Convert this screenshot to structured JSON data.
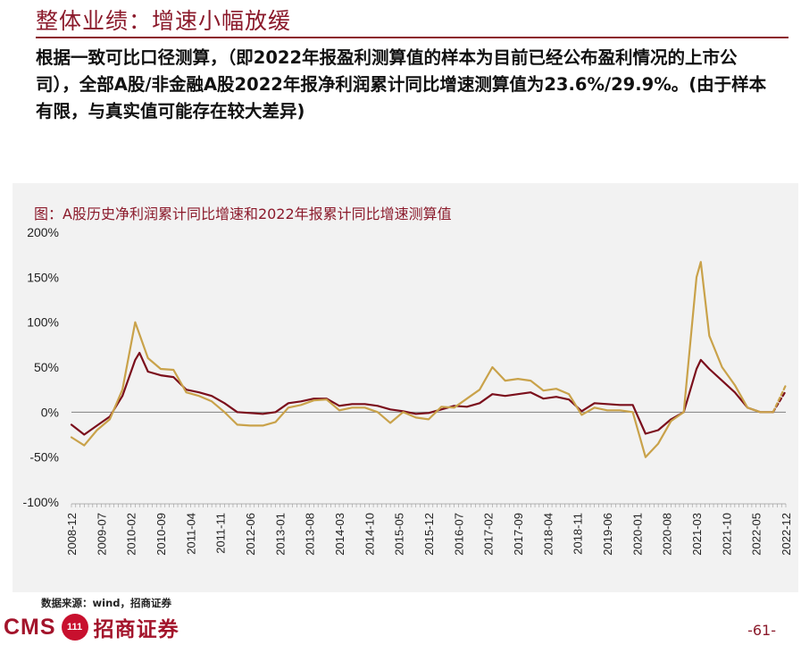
{
  "header": {
    "title": "整体业绩：增速小幅放缓",
    "intro": "根据一致可比口径测算，（即2022年报盈利测算值的样本为目前已经公布盈利情况的上市公司），全部A股/非金融A股2022年报净利润累计同比增速测算值为23.6%/29.9%。(由于样本有限，与真实值可能存在较大差异)"
  },
  "footer": {
    "source": "数据来源：wind，招商证券",
    "logo_latin": "CMS",
    "logo_cn": "招商证券",
    "page": "-61-"
  },
  "colors": {
    "dark_red": "#7b0f1c",
    "gold": "#c9a24a",
    "title_red": "#8b1a2b"
  },
  "chart_data": {
    "type": "line",
    "title": "图：A股历史净利润累计同比增速和2022年报累计同比增速测算值",
    "ylim": [
      -100,
      200
    ],
    "yticks": [
      -100,
      -50,
      0,
      50,
      100,
      150,
      200
    ],
    "ytick_labels": [
      "-100%",
      "-50%",
      "0%",
      "50%",
      "100%",
      "150%",
      "200%"
    ],
    "x_tick_labels": [
      "2008-12",
      "2009-07",
      "2010-02",
      "2010-09",
      "2011-04",
      "2011-11",
      "2012-06",
      "2013-01",
      "2013-08",
      "2014-03",
      "2014-10",
      "2015-05",
      "2015-12",
      "2016-07",
      "2017-02",
      "2017-09",
      "2018-04",
      "2018-11",
      "2019-06",
      "2020-01",
      "2020-08",
      "2021-03",
      "2021-10",
      "2022-05",
      "2022-12"
    ],
    "x_start": "2008-12",
    "x_end": "2022-12",
    "grid": false,
    "legend": "none",
    "series": [
      {
        "color": "#7b0f1c",
        "style": "solid",
        "points": [
          [
            "2008-12",
            -14
          ],
          [
            "2009-03",
            -25
          ],
          [
            "2009-06",
            -15
          ],
          [
            "2009-09",
            -5
          ],
          [
            "2009-12",
            18
          ],
          [
            "2010-03",
            58
          ],
          [
            "2010-04",
            66
          ],
          [
            "2010-06",
            45
          ],
          [
            "2010-09",
            41
          ],
          [
            "2010-12",
            39
          ],
          [
            "2011-03",
            25
          ],
          [
            "2011-06",
            22
          ],
          [
            "2011-09",
            18
          ],
          [
            "2011-12",
            10
          ],
          [
            "2012-03",
            0
          ],
          [
            "2012-06",
            -1
          ],
          [
            "2012-09",
            -2
          ],
          [
            "2012-12",
            0
          ],
          [
            "2013-03",
            10
          ],
          [
            "2013-06",
            12
          ],
          [
            "2013-09",
            15
          ],
          [
            "2013-12",
            15
          ],
          [
            "2014-03",
            7
          ],
          [
            "2014-06",
            9
          ],
          [
            "2014-09",
            9
          ],
          [
            "2014-12",
            7
          ],
          [
            "2015-03",
            3
          ],
          [
            "2015-06",
            1
          ],
          [
            "2015-09",
            -2
          ],
          [
            "2015-12",
            -1
          ],
          [
            "2016-03",
            3
          ],
          [
            "2016-06",
            7
          ],
          [
            "2016-09",
            6
          ],
          [
            "2016-12",
            10
          ],
          [
            "2017-03",
            20
          ],
          [
            "2017-06",
            18
          ],
          [
            "2017-09",
            20
          ],
          [
            "2017-12",
            22
          ],
          [
            "2018-03",
            15
          ],
          [
            "2018-06",
            17
          ],
          [
            "2018-09",
            14
          ],
          [
            "2018-12",
            1
          ],
          [
            "2019-03",
            10
          ],
          [
            "2019-06",
            9
          ],
          [
            "2019-09",
            8
          ],
          [
            "2019-12",
            8
          ],
          [
            "2020-03",
            -24
          ],
          [
            "2020-06",
            -20
          ],
          [
            "2020-09",
            -8
          ],
          [
            "2020-12",
            0
          ],
          [
            "2021-03",
            48
          ],
          [
            "2021-04",
            58
          ],
          [
            "2021-06",
            48
          ],
          [
            "2021-09",
            35
          ],
          [
            "2021-12",
            22
          ],
          [
            "2022-03",
            5
          ],
          [
            "2022-06",
            0
          ],
          [
            "2022-09",
            0
          ]
        ]
      },
      {
        "color": "#c9a24a",
        "style": "solid",
        "points": [
          [
            "2008-12",
            -28
          ],
          [
            "2009-03",
            -37
          ],
          [
            "2009-06",
            -20
          ],
          [
            "2009-09",
            -8
          ],
          [
            "2009-12",
            25
          ],
          [
            "2010-03",
            100
          ],
          [
            "2010-06",
            60
          ],
          [
            "2010-09",
            48
          ],
          [
            "2010-12",
            47
          ],
          [
            "2011-03",
            22
          ],
          [
            "2011-06",
            18
          ],
          [
            "2011-09",
            12
          ],
          [
            "2011-12",
            0
          ],
          [
            "2012-03",
            -14
          ],
          [
            "2012-06",
            -15
          ],
          [
            "2012-09",
            -15
          ],
          [
            "2012-12",
            -11
          ],
          [
            "2013-03",
            5
          ],
          [
            "2013-06",
            8
          ],
          [
            "2013-09",
            13
          ],
          [
            "2013-12",
            14
          ],
          [
            "2014-03",
            2
          ],
          [
            "2014-06",
            5
          ],
          [
            "2014-09",
            5
          ],
          [
            "2014-12",
            0
          ],
          [
            "2015-03",
            -12
          ],
          [
            "2015-06",
            0
          ],
          [
            "2015-09",
            -6
          ],
          [
            "2015-12",
            -8
          ],
          [
            "2016-03",
            6
          ],
          [
            "2016-06",
            5
          ],
          [
            "2016-09",
            15
          ],
          [
            "2016-12",
            25
          ],
          [
            "2017-03",
            50
          ],
          [
            "2017-06",
            35
          ],
          [
            "2017-09",
            37
          ],
          [
            "2017-12",
            35
          ],
          [
            "2018-03",
            24
          ],
          [
            "2018-06",
            26
          ],
          [
            "2018-09",
            20
          ],
          [
            "2018-12",
            -3
          ],
          [
            "2019-03",
            5
          ],
          [
            "2019-06",
            2
          ],
          [
            "2019-09",
            2
          ],
          [
            "2019-12",
            0
          ],
          [
            "2020-03",
            -50
          ],
          [
            "2020-06",
            -35
          ],
          [
            "2020-09",
            -10
          ],
          [
            "2020-12",
            0
          ],
          [
            "2021-03",
            150
          ],
          [
            "2021-04",
            167
          ],
          [
            "2021-06",
            85
          ],
          [
            "2021-09",
            50
          ],
          [
            "2021-12",
            30
          ],
          [
            "2022-03",
            5
          ],
          [
            "2022-06",
            0
          ],
          [
            "2022-09",
            0
          ]
        ]
      },
      {
        "color": "#7b0f1c",
        "style": "dashed",
        "points": [
          [
            "2022-09",
            0
          ],
          [
            "2022-12",
            23.6
          ]
        ]
      },
      {
        "color": "#c9a24a",
        "style": "dashed",
        "points": [
          [
            "2022-09",
            0
          ],
          [
            "2022-12",
            29.9
          ]
        ]
      }
    ]
  }
}
